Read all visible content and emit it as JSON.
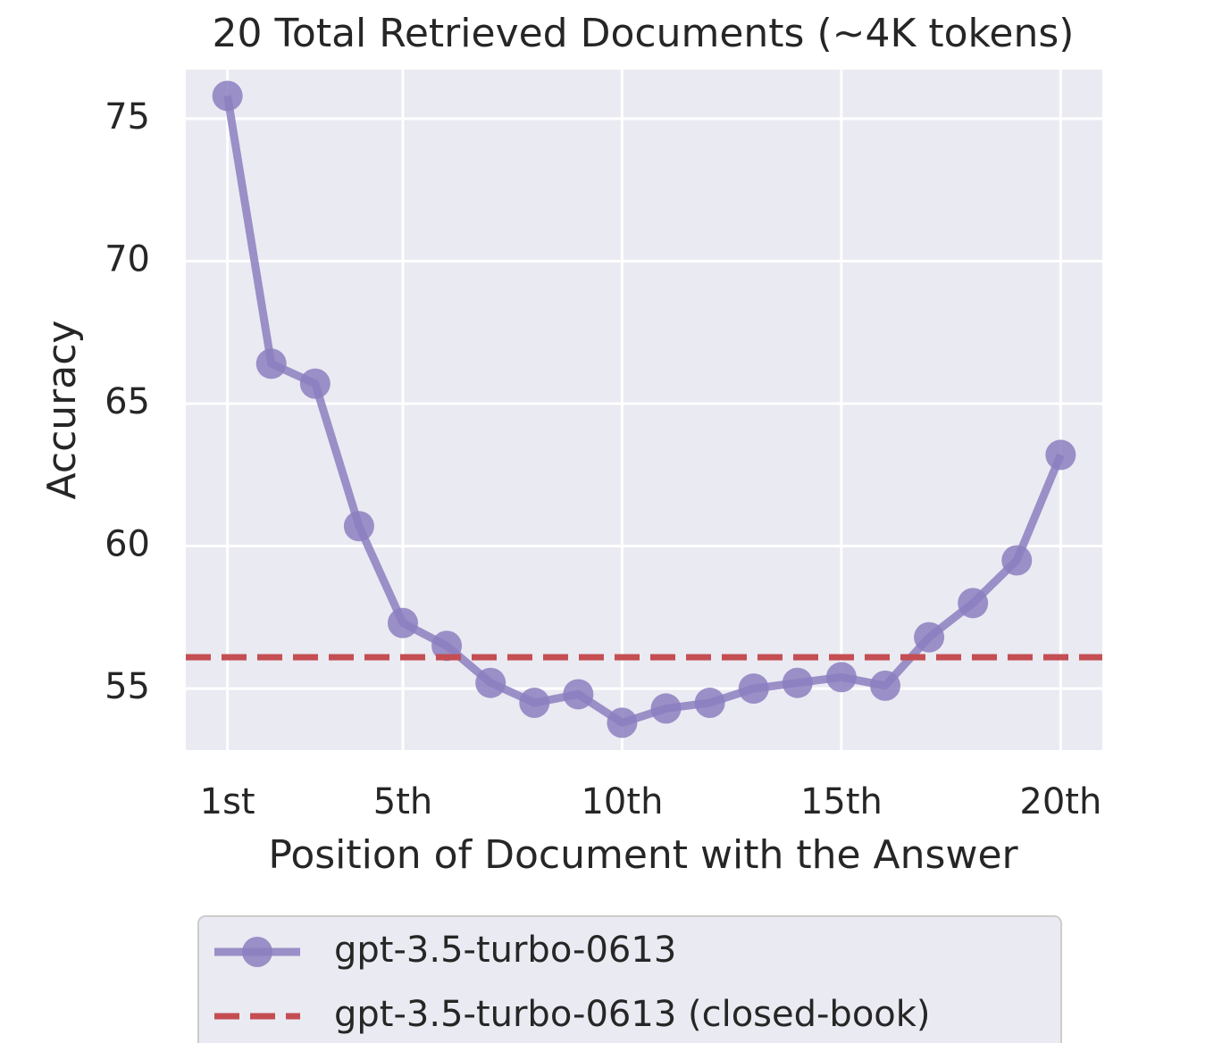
{
  "chart_data": {
    "type": "line",
    "title": "20 Total Retrieved Documents (~4K tokens)",
    "xlabel": "Position of Document with the Answer",
    "ylabel": "Accuracy",
    "x": [
      1,
      2,
      3,
      4,
      5,
      6,
      7,
      8,
      9,
      10,
      11,
      12,
      13,
      14,
      15,
      16,
      17,
      18,
      19,
      20
    ],
    "series": [
      {
        "name": "gpt-3.5-turbo-0613",
        "color": "#8c7fc0",
        "values": [
          75.8,
          66.4,
          65.7,
          60.7,
          57.3,
          56.5,
          55.2,
          54.5,
          54.8,
          53.8,
          54.3,
          54.5,
          55.0,
          55.2,
          55.4,
          55.1,
          56.8,
          58.0,
          59.5,
          63.2
        ]
      },
      {
        "name": "gpt-3.5-turbo-0613 (closed-book)",
        "color": "#c44e52",
        "style": "dashed",
        "value": 56.1
      }
    ],
    "xlim": [
      0.05,
      20.95
    ],
    "xticks": [
      {
        "value": 1,
        "label": "1st"
      },
      {
        "value": 5,
        "label": "5th"
      },
      {
        "value": 10,
        "label": "10th"
      },
      {
        "value": 15,
        "label": "15th"
      },
      {
        "value": 20,
        "label": "20th"
      }
    ],
    "ylim": [
      52.84,
      76.72
    ],
    "yticks": [
      55,
      60,
      65,
      70,
      75
    ],
    "grid": true,
    "legend": "bottom"
  }
}
